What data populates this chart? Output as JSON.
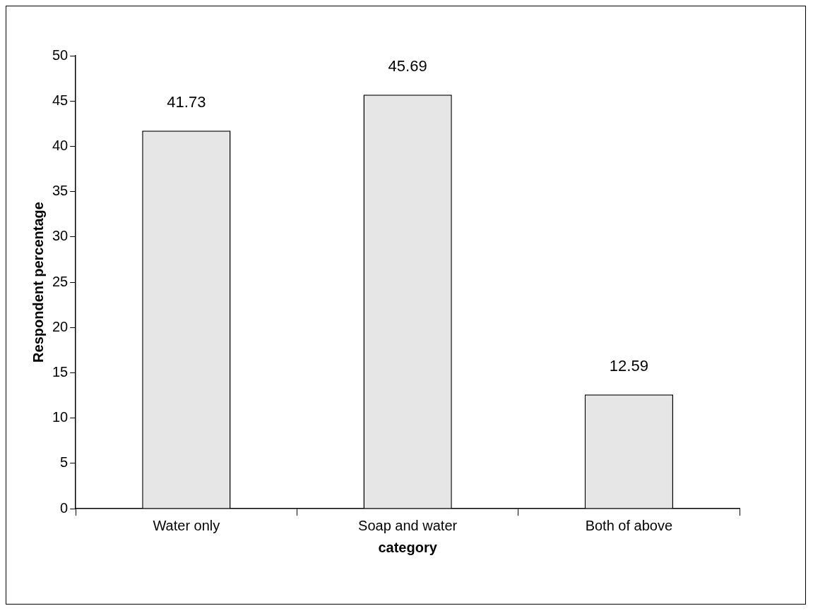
{
  "chart_data": {
    "type": "bar",
    "xlabel": "category",
    "ylabel": "Respondent percentage",
    "categories": [
      "Water only",
      "Soap and water",
      "Both of above"
    ],
    "values": [
      41.73,
      45.69,
      12.59
    ],
    "color": "#e6e6e6",
    "ylim": [
      0,
      50
    ],
    "yticks": [
      0,
      5,
      10,
      15,
      20,
      25,
      30,
      35,
      40,
      45,
      50
    ],
    "data_labels": true
  }
}
